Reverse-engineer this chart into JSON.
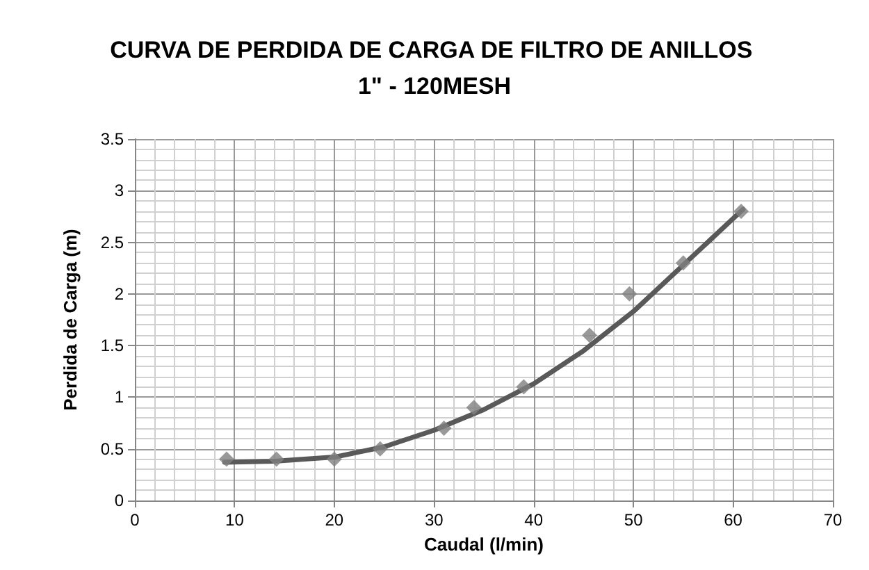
{
  "chart_data": {
    "type": "scatter",
    "title": "CURVA DE PERDIDA DE CARGA DE FILTRO DE ANILLOS 1\" - 120MESH",
    "xlabel": "Caudal (l/min)",
    "ylabel": "Perdida de Carga (m)",
    "xlim": [
      0,
      70
    ],
    "xticks": [
      0,
      10,
      20,
      30,
      40,
      50,
      60,
      70
    ],
    "ylim": [
      0,
      3.5
    ],
    "yticks": [
      0,
      0.5,
      1,
      1.5,
      2,
      2.5,
      3,
      3.5
    ],
    "grid": true,
    "series": [
      {
        "color": "#7f7f7f",
        "marker": "diamond",
        "x": [
          9.2,
          14.2,
          20,
          24.6,
          31,
          34,
          39,
          45.6,
          49.6,
          55,
          60.8
        ],
        "values": [
          0.4,
          0.4,
          0.4,
          0.5,
          0.7,
          0.9,
          1.1,
          1.6,
          2.0,
          2.3,
          2.8
        ]
      },
      {
        "type": "line",
        "color": "#595959",
        "marker": "none",
        "line_style": "solid",
        "x": [
          9,
          14,
          20,
          25,
          30,
          35,
          40,
          45,
          50,
          55,
          61
        ],
        "values": [
          0.37,
          0.38,
          0.42,
          0.52,
          0.68,
          0.88,
          1.13,
          1.45,
          1.83,
          2.28,
          2.82
        ]
      }
    ]
  }
}
